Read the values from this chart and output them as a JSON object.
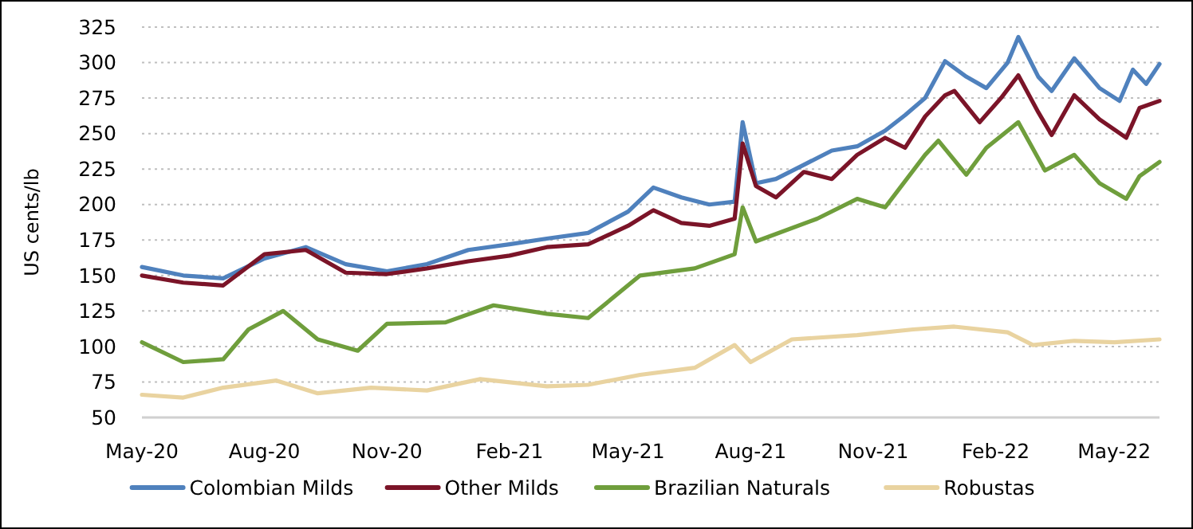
{
  "chart_data": {
    "type": "line",
    "ylabel": "US cents/lb",
    "xlim": [
      "2020-05-01",
      "2022-06-04"
    ],
    "xticks": [
      {
        "value": "2020-05-01",
        "label": "May-20"
      },
      {
        "value": "2020-08-01",
        "label": "Aug-20"
      },
      {
        "value": "2020-11-01",
        "label": "Nov-20"
      },
      {
        "value": "2021-02-01",
        "label": "Feb-21"
      },
      {
        "value": "2021-05-01",
        "label": "May-21"
      },
      {
        "value": "2021-08-01",
        "label": "Aug-21"
      },
      {
        "value": "2021-11-01",
        "label": "Nov-21"
      },
      {
        "value": "2022-02-01",
        "label": "Feb-22"
      },
      {
        "value": "2022-05-01",
        "label": "May-22"
      }
    ],
    "ylim": [
      50,
      325
    ],
    "yticks": [
      50,
      75,
      100,
      125,
      150,
      175,
      200,
      225,
      250,
      275,
      300,
      325
    ],
    "grid": "y",
    "legend": "bottom",
    "marker": "none",
    "line_style": "solid",
    "series": [
      {
        "name": "Colombian Milds",
        "color": "#4f81bd",
        "x": [
          "2020-05-01",
          "2020-06-01",
          "2020-07-01",
          "2020-08-01",
          "2020-09-01",
          "2020-10-01",
          "2020-11-01",
          "2020-12-01",
          "2021-01-01",
          "2021-02-01",
          "2021-03-01",
          "2021-04-01",
          "2021-05-01",
          "2021-05-20",
          "2021-06-10",
          "2021-07-01",
          "2021-07-20",
          "2021-07-26",
          "2021-08-05",
          "2021-08-20",
          "2021-09-10",
          "2021-10-01",
          "2021-10-20",
          "2021-11-10",
          "2021-11-25",
          "2021-12-10",
          "2021-12-25",
          "2022-01-10",
          "2022-01-25",
          "2022-02-10",
          "2022-02-18",
          "2022-03-05",
          "2022-03-15",
          "2022-04-01",
          "2022-04-20",
          "2022-05-05",
          "2022-05-15",
          "2022-05-25",
          "2022-06-04"
        ],
        "values": [
          156,
          150,
          148,
          162,
          170,
          158,
          153,
          158,
          168,
          172,
          176,
          180,
          195,
          212,
          205,
          200,
          202,
          258,
          215,
          218,
          228,
          238,
          241,
          252,
          263,
          275,
          301,
          290,
          282,
          300,
          318,
          290,
          280,
          303,
          282,
          273,
          295,
          285,
          299
        ]
      },
      {
        "name": "Other Milds",
        "color": "#7b1428",
        "x": [
          "2020-05-01",
          "2020-06-01",
          "2020-07-01",
          "2020-08-01",
          "2020-09-01",
          "2020-10-01",
          "2020-11-01",
          "2020-12-01",
          "2021-01-01",
          "2021-02-01",
          "2021-03-01",
          "2021-04-01",
          "2021-05-01",
          "2021-05-20",
          "2021-06-10",
          "2021-07-01",
          "2021-07-20",
          "2021-07-26",
          "2021-08-05",
          "2021-08-20",
          "2021-09-10",
          "2021-10-01",
          "2021-10-20",
          "2021-11-10",
          "2021-11-25",
          "2021-12-10",
          "2021-12-25",
          "2022-01-01",
          "2022-01-20",
          "2022-02-05",
          "2022-02-18",
          "2022-03-05",
          "2022-03-15",
          "2022-04-01",
          "2022-04-20",
          "2022-05-10",
          "2022-05-20",
          "2022-06-04"
        ],
        "values": [
          150,
          145,
          143,
          165,
          168,
          152,
          151,
          155,
          160,
          164,
          170,
          172,
          185,
          196,
          187,
          185,
          190,
          243,
          213,
          205,
          223,
          218,
          235,
          247,
          240,
          262,
          277,
          280,
          258,
          275,
          291,
          265,
          249,
          277,
          260,
          247,
          268,
          273
        ]
      },
      {
        "name": "Brazilian Naturals",
        "color": "#6f9e3c",
        "x": [
          "2020-05-01",
          "2020-06-01",
          "2020-07-01",
          "2020-07-20",
          "2020-08-15",
          "2020-09-10",
          "2020-10-10",
          "2020-11-01",
          "2020-12-15",
          "2021-01-20",
          "2021-03-01",
          "2021-04-01",
          "2021-05-10",
          "2021-06-20",
          "2021-07-20",
          "2021-07-26",
          "2021-08-05",
          "2021-09-20",
          "2021-10-20",
          "2021-11-10",
          "2021-12-10",
          "2021-12-20",
          "2022-01-10",
          "2022-01-25",
          "2022-02-18",
          "2022-03-10",
          "2022-04-01",
          "2022-04-20",
          "2022-05-10",
          "2022-05-20",
          "2022-06-04"
        ],
        "values": [
          103,
          89,
          91,
          112,
          125,
          105,
          97,
          116,
          117,
          129,
          123,
          120,
          150,
          155,
          165,
          198,
          174,
          190,
          204,
          198,
          235,
          245,
          221,
          240,
          258,
          224,
          235,
          215,
          204,
          220,
          230
        ]
      },
      {
        "name": "Robustas",
        "color": "#e9d3a0",
        "x": [
          "2020-05-01",
          "2020-06-01",
          "2020-07-01",
          "2020-08-10",
          "2020-09-10",
          "2020-10-20",
          "2020-12-01",
          "2021-01-10",
          "2021-03-01",
          "2021-04-01",
          "2021-05-10",
          "2021-06-20",
          "2021-07-20",
          "2021-08-01",
          "2021-09-01",
          "2021-10-20",
          "2021-12-01",
          "2022-01-01",
          "2022-02-10",
          "2022-03-01",
          "2022-04-01",
          "2022-05-01",
          "2022-06-04"
        ],
        "values": [
          66,
          64,
          71,
          76,
          67,
          71,
          69,
          77,
          72,
          73,
          80,
          85,
          101,
          89,
          105,
          108,
          112,
          114,
          110,
          101,
          104,
          103,
          105
        ]
      }
    ]
  }
}
